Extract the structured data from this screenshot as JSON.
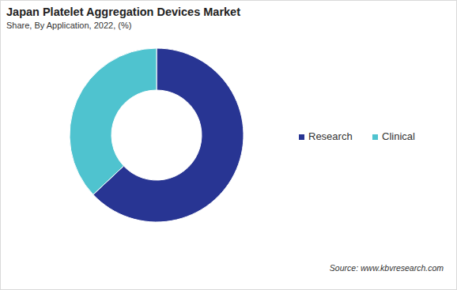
{
  "chart_data": {
    "type": "donut",
    "title": "Japan Platelet Aggregation Devices Market",
    "subtitle": "Share, By Application, 2022, (%)",
    "categories": [
      "Research",
      "Clinical"
    ],
    "values": [
      63,
      37
    ],
    "colors": [
      "#283593",
      "#4fc3cf"
    ],
    "legend": "right",
    "annotations": [
      "Source: www.kbvresearch.com"
    ]
  }
}
